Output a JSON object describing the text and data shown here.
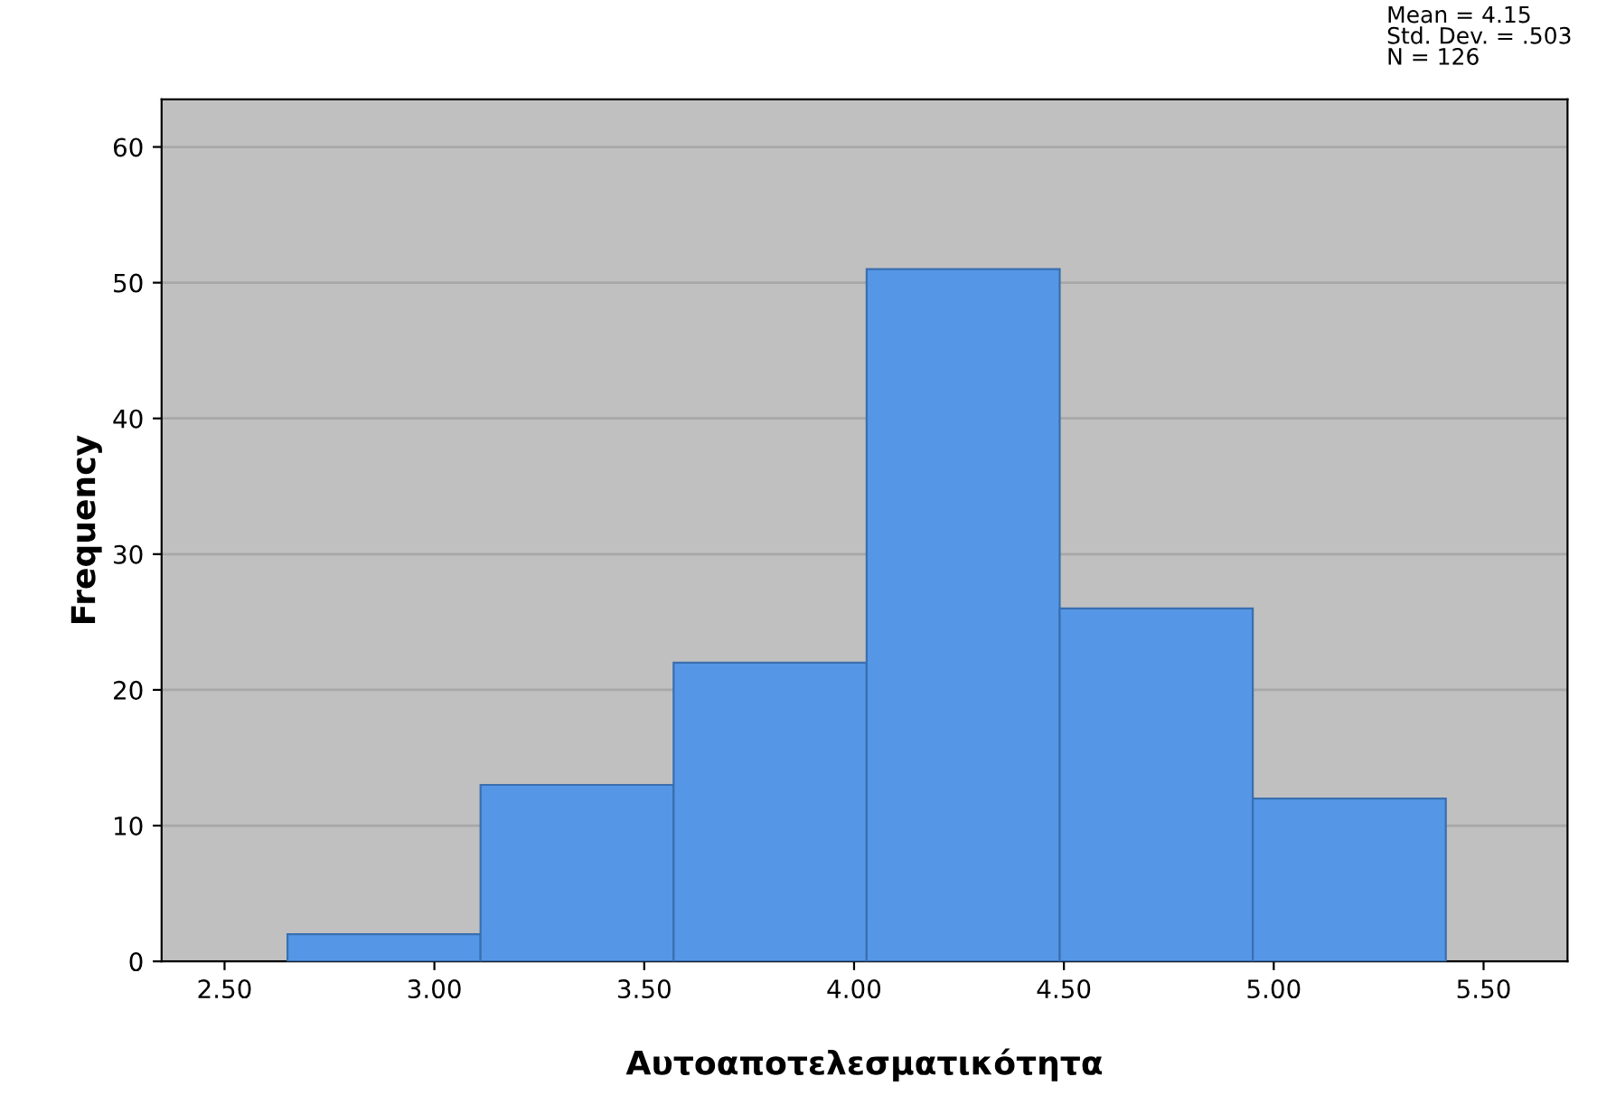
{
  "chart_data": {
    "type": "histogram",
    "xlabel": "Αυτοαποτελεσματικότητα",
    "ylabel": "Frequency",
    "bins": [
      2.65,
      3.11,
      3.57,
      4.03,
      4.49,
      4.95,
      5.41
    ],
    "values": [
      2,
      13,
      22,
      51,
      26,
      12
    ],
    "color": "#5596e6",
    "xlim": [
      2.35,
      5.7
    ],
    "xticks": [
      {
        "value": 2.5,
        "label": "2.50"
      },
      {
        "value": 3.0,
        "label": "3.00"
      },
      {
        "value": 3.5,
        "label": "3.50"
      },
      {
        "value": 4.0,
        "label": "4.00"
      },
      {
        "value": 4.5,
        "label": "4.50"
      },
      {
        "value": 5.0,
        "label": "5.00"
      },
      {
        "value": 5.5,
        "label": "5.50"
      }
    ],
    "ylim": [
      0,
      63.5
    ],
    "yticks": [
      0,
      10,
      20,
      30,
      40,
      50,
      60
    ],
    "grid": "y",
    "annotations": [
      "Mean = 4.15",
      "Std. Dev. = .503",
      "N = 126"
    ]
  }
}
